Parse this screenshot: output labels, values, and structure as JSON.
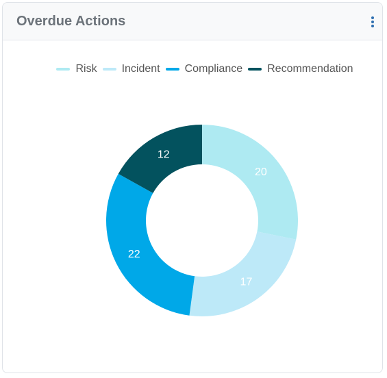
{
  "chart_data": {
    "type": "donut",
    "title": "Overdue Actions",
    "categories": [
      "Risk",
      "Incident",
      "Compliance",
      "Recommendation"
    ],
    "values": [
      20,
      17,
      22,
      12
    ],
    "colors": [
      "#aeeaf2",
      "#bde9f8",
      "#00a8e8",
      "#03525e"
    ]
  }
}
